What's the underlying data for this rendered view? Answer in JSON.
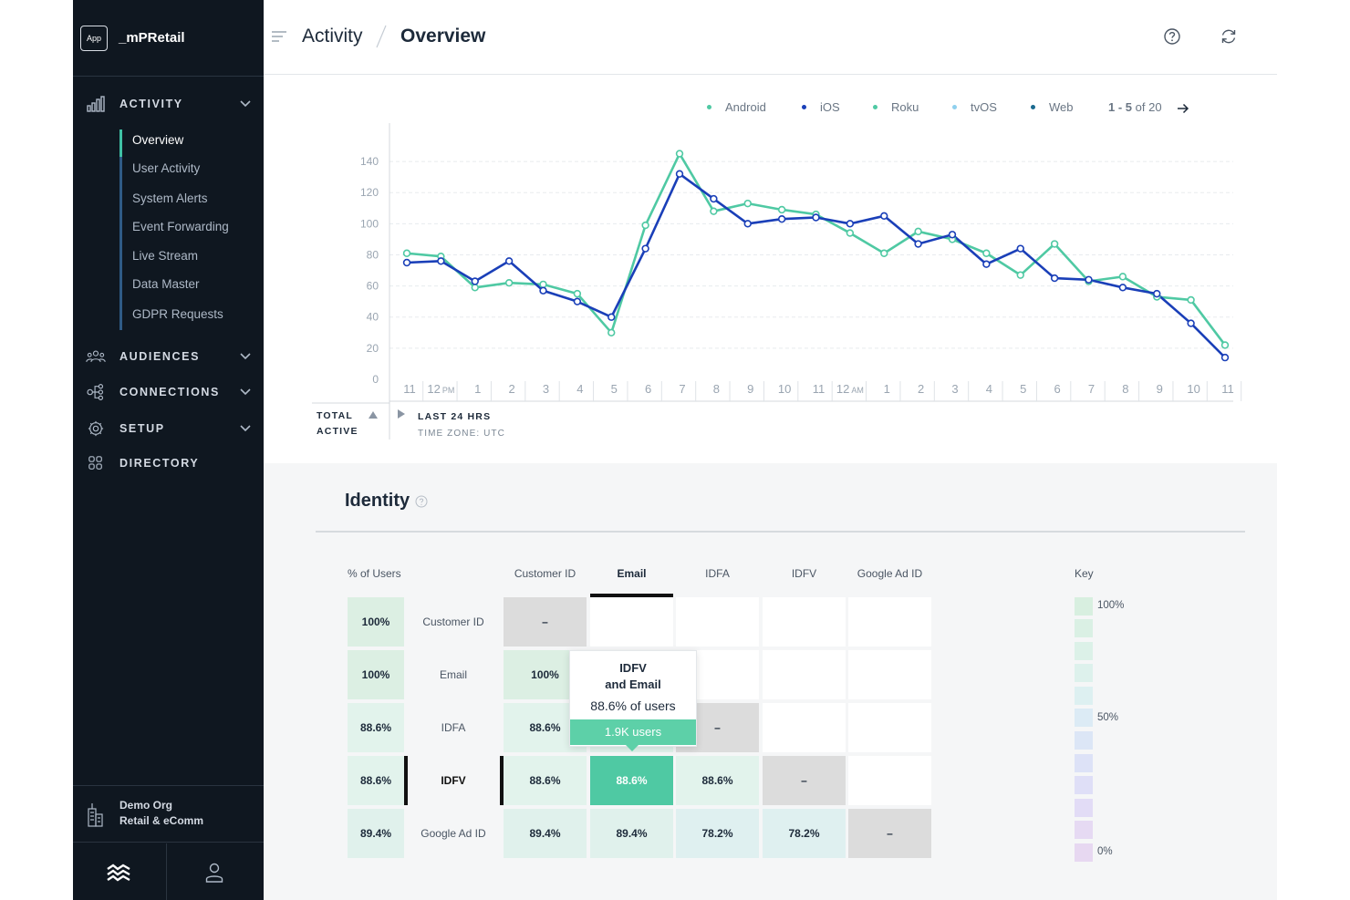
{
  "app": {
    "badge": "App",
    "name": "_mPRetail"
  },
  "sidebar": {
    "sections": [
      {
        "label": "ACTIVITY",
        "icon": "bar-chart-icon",
        "expandable": true
      },
      {
        "label": "AUDIENCES",
        "icon": "users-icon",
        "expandable": true
      },
      {
        "label": "CONNECTIONS",
        "icon": "connections-icon",
        "expandable": true
      },
      {
        "label": "SETUP",
        "icon": "gear-icon",
        "expandable": true
      },
      {
        "label": "DIRECTORY",
        "icon": "grid-icon",
        "expandable": false
      }
    ],
    "activity_items": [
      "Overview",
      "User Activity",
      "System Alerts",
      "Event Forwarding",
      "Live Stream",
      "Data Master",
      "GDPR Requests"
    ],
    "active_item": "Overview",
    "org": {
      "line1": "Demo Org",
      "line2": "Retail & eComm"
    }
  },
  "header": {
    "crumb1": "Activity",
    "crumb2": "Overview"
  },
  "legend": {
    "items": [
      {
        "name": "Android",
        "color": "#4fc9a3"
      },
      {
        "name": "iOS",
        "color": "#1a3fb8"
      },
      {
        "name": "Roku",
        "color": "#4fc9a3"
      },
      {
        "name": "tvOS",
        "color": "#8fd0ee"
      },
      {
        "name": "Web",
        "color": "#1b6a8f"
      }
    ],
    "pager_range": "1 - 5",
    "pager_total": "of 20"
  },
  "chart_labels": {
    "total": "TOTAL",
    "active": "ACTIVE",
    "range": "LAST 24 HRS",
    "timezone": "TIME ZONE: UTC"
  },
  "chart_data": {
    "type": "line",
    "x": [
      "11",
      "12 PM",
      "1",
      "2",
      "3",
      "4",
      "5",
      "6",
      "7",
      "8",
      "9",
      "10",
      "11",
      "12 AM",
      "1",
      "2",
      "3",
      "4",
      "5",
      "6",
      "7",
      "8",
      "9",
      "10",
      "11"
    ],
    "x_main": [
      "11",
      "12",
      "1",
      "2",
      "3",
      "4",
      "5",
      "6",
      "7",
      "8",
      "9",
      "10",
      "11",
      "12",
      "1",
      "2",
      "3",
      "4",
      "5",
      "6",
      "7",
      "8",
      "9",
      "10",
      "11"
    ],
    "x_suffix": [
      "",
      "PM",
      "",
      "",
      "",
      "",
      "",
      "",
      "",
      "",
      "",
      "",
      "",
      "AM",
      "",
      "",
      "",
      "",
      "",
      "",
      "",
      "",
      "",
      "",
      ""
    ],
    "yticks": [
      0,
      20,
      40,
      60,
      80,
      100,
      120,
      140
    ],
    "ylim": [
      0,
      150
    ],
    "grid": true,
    "legend_position": "top-right",
    "series": [
      {
        "name": "Android",
        "color": "#4fc9a3",
        "values": [
          81,
          79,
          59,
          62,
          61,
          55,
          30,
          99,
          145,
          108,
          113,
          109,
          106,
          94,
          81,
          95,
          90,
          81,
          67,
          87,
          63,
          66,
          53,
          51,
          22
        ]
      },
      {
        "name": "iOS",
        "color": "#1a3fb8",
        "values": [
          75,
          76,
          63,
          76,
          57,
          50,
          40,
          84,
          132,
          116,
          100,
          103,
          104,
          100,
          105,
          87,
          93,
          74,
          84,
          65,
          64,
          59,
          55,
          36,
          14
        ]
      }
    ]
  },
  "identity": {
    "title": "Identity",
    "pct_header": "% of Users",
    "key_title": "Key",
    "columns": [
      "Customer ID",
      "Email",
      "IDFA",
      "IDFV",
      "Google Ad ID"
    ],
    "active_column": "Email",
    "rows": [
      {
        "label": "Customer ID",
        "pct": "100%",
        "cells": [
          "–",
          "",
          "",
          "",
          ""
        ]
      },
      {
        "label": "Email",
        "pct": "100%",
        "cells": [
          "100%",
          "",
          "",
          "",
          ""
        ]
      },
      {
        "label": "IDFA",
        "pct": "88.6%",
        "cells": [
          "88.6%",
          "",
          "–",
          "",
          ""
        ]
      },
      {
        "label": "IDFV",
        "pct": "88.6%",
        "cells": [
          "88.6%",
          "88.6%",
          "88.6%",
          "–",
          ""
        ]
      },
      {
        "label": "Google Ad ID",
        "pct": "89.4%",
        "cells": [
          "89.4%",
          "89.4%",
          "78.2%",
          "78.2%",
          "–"
        ]
      }
    ],
    "active_row": "IDFV",
    "key_labels": [
      "100%",
      "50%",
      "0%"
    ],
    "tooltip": {
      "title_line1": "IDFV",
      "title_line2": "and Email",
      "share": "88.6% of users",
      "count": "1.9K users"
    }
  }
}
